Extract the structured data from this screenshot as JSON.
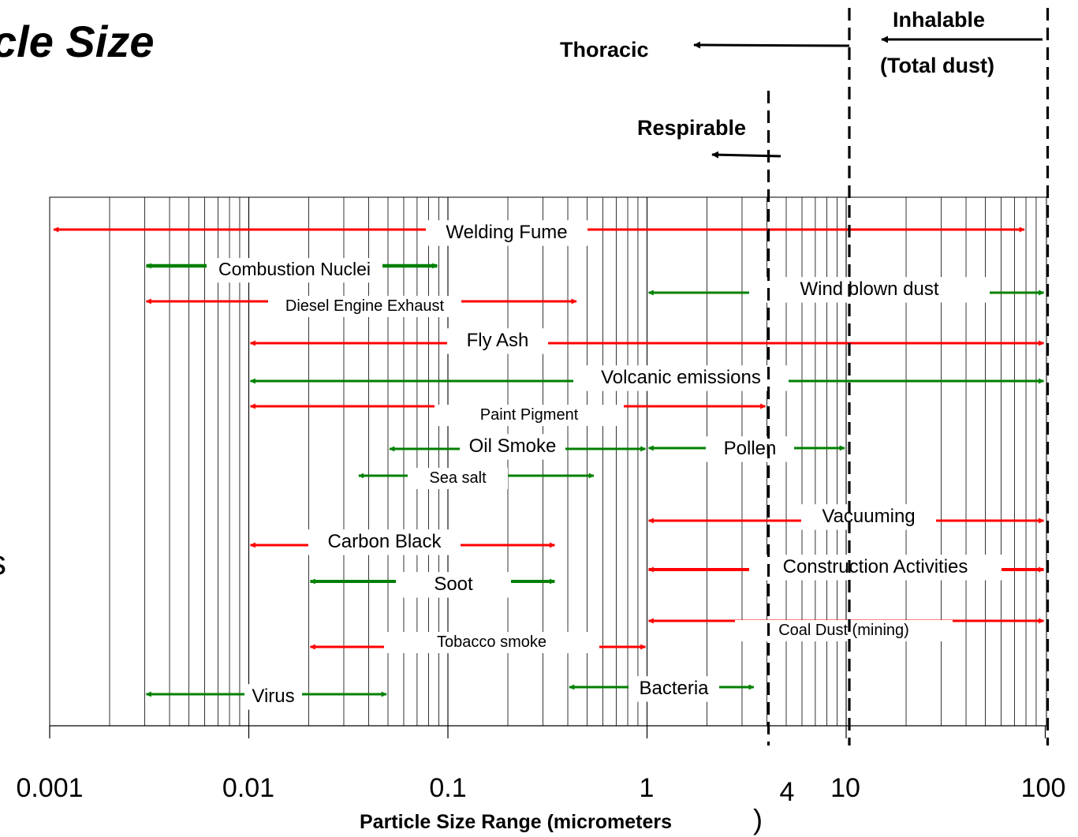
{
  "title_fragment": "cle Size",
  "left_fragment": "s",
  "xlabel": "Particle Size Range (micrometers",
  "xlabel_paren": ")",
  "x_ticks": [
    {
      "value": 0.001,
      "label": "0.001"
    },
    {
      "value": 0.01,
      "label": "0.01"
    },
    {
      "value": 0.1,
      "label": "0.1"
    },
    {
      "value": 1,
      "label": "1"
    },
    {
      "value": 4,
      "label": "4"
    },
    {
      "value": 10,
      "label": "10"
    },
    {
      "value": 100,
      "label": "100"
    }
  ],
  "fractions": [
    {
      "name": "Thoracic",
      "cutoff_um": 10
    },
    {
      "name": "Respirable",
      "cutoff_um": 4
    },
    {
      "name": "Inhalable",
      "sub": "(Total dust)",
      "cutoff_um": 100
    }
  ],
  "colors": {
    "red": "#ff0000",
    "green": "#008000",
    "black": "#000000",
    "grid": "#000000"
  },
  "chart_data": {
    "type": "range",
    "x_scale": "log",
    "xlim": [
      0.001,
      100
    ],
    "grid": true,
    "ranges": [
      {
        "label": "Welding Fume",
        "min": 0.001,
        "max": 80,
        "color": "red"
      },
      {
        "label": "Combustion Nuclei",
        "min": 0.003,
        "max": 0.09,
        "color": "green"
      },
      {
        "label": "Wind blown dust",
        "min": 1,
        "max": 100,
        "color": "green"
      },
      {
        "label": "Diesel Engine Exhaust",
        "min": 0.003,
        "max": 0.45,
        "color": "red"
      },
      {
        "label": "Fly Ash",
        "min": 0.01,
        "max": 100,
        "color": "red"
      },
      {
        "label": "Volcanic emissions",
        "min": 0.01,
        "max": 100,
        "color": "green"
      },
      {
        "label": "Paint Pigment",
        "min": 0.01,
        "max": 4,
        "color": "red"
      },
      {
        "label": "Oil Smoke",
        "min": 0.05,
        "max": 1,
        "color": "green"
      },
      {
        "label": "Pollen",
        "min": 1,
        "max": 10,
        "color": "green"
      },
      {
        "label": "Sea salt",
        "min": 0.035,
        "max": 0.55,
        "color": "green"
      },
      {
        "label": "Vacuuming",
        "min": 1,
        "max": 100,
        "color": "red"
      },
      {
        "label": "Carbon Black",
        "min": 0.01,
        "max": 0.35,
        "color": "red"
      },
      {
        "label": "Construction Activities",
        "min": 1,
        "max": 100,
        "color": "red"
      },
      {
        "label": "Soot",
        "min": 0.02,
        "max": 0.35,
        "color": "green"
      },
      {
        "label": "Coal Dust (mining)",
        "min": 1,
        "max": 100,
        "color": "red"
      },
      {
        "label": "Tobacco smoke",
        "min": 0.02,
        "max": 1,
        "color": "red"
      },
      {
        "label": "Virus",
        "min": 0.003,
        "max": 0.05,
        "color": "green"
      },
      {
        "label": "Bacteria",
        "min": 0.4,
        "max": 3.5,
        "color": "green"
      }
    ]
  }
}
